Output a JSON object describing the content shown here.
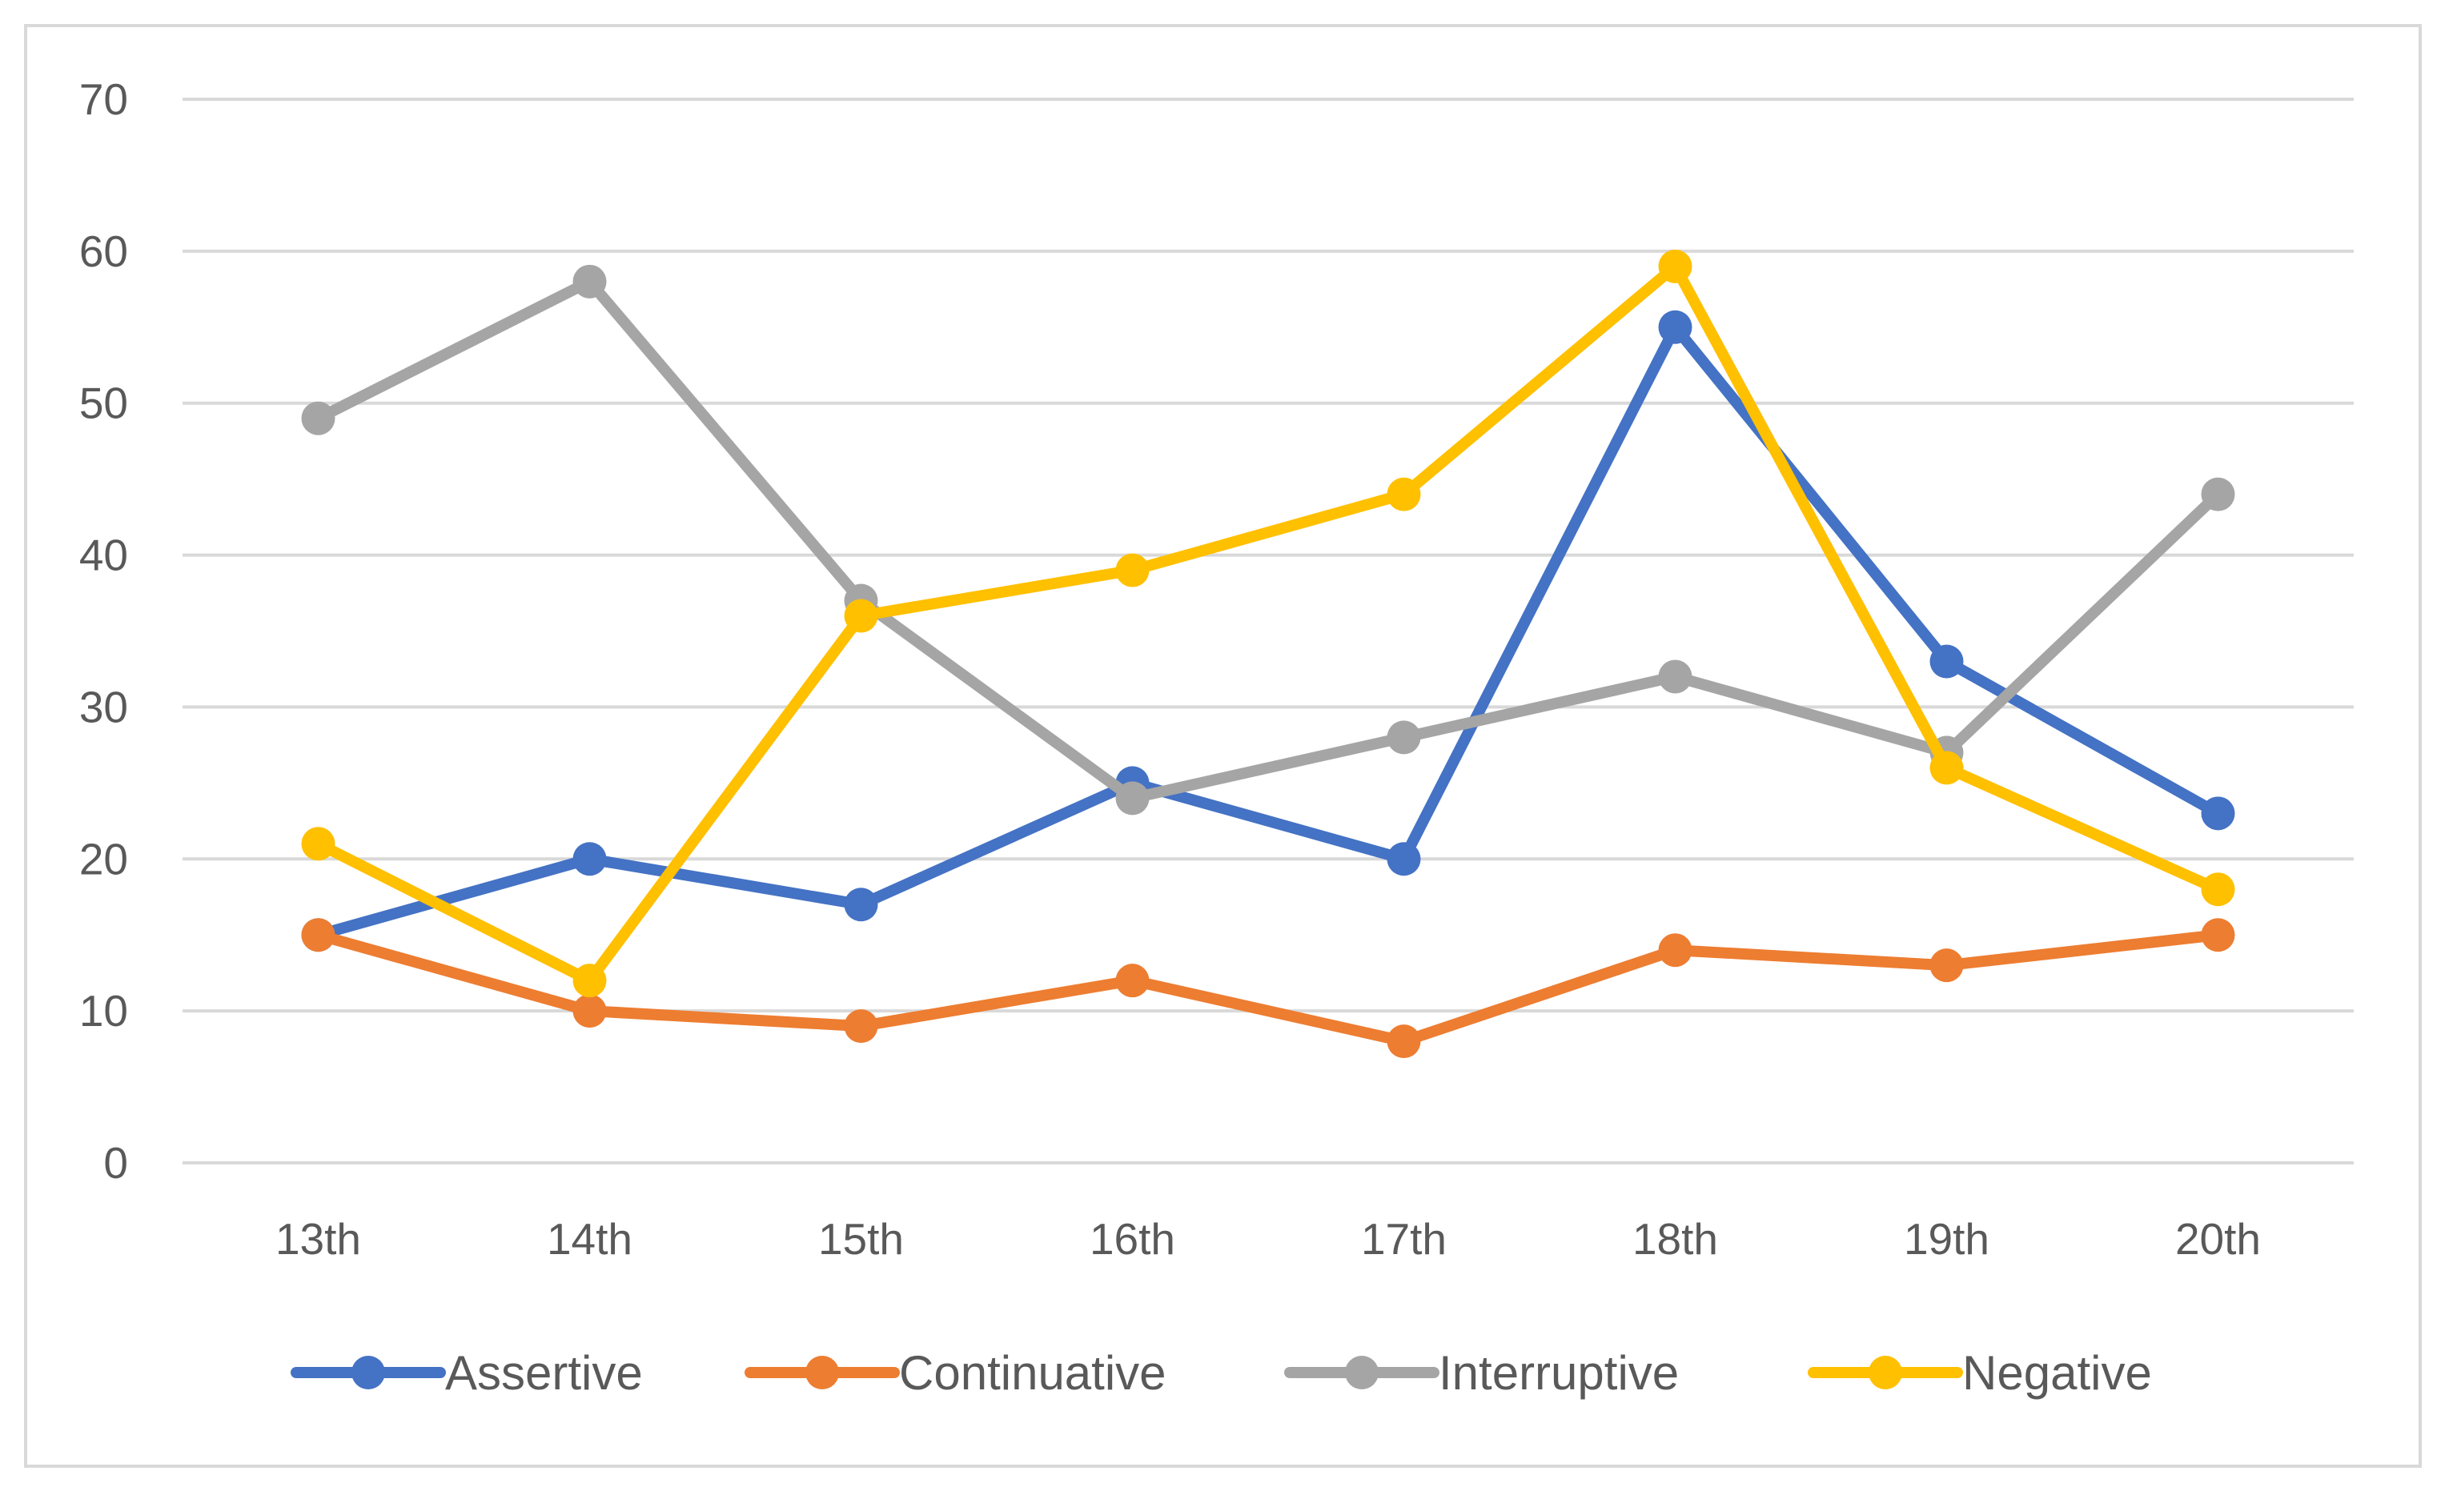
{
  "chart_data": {
    "type": "line",
    "title": "",
    "xlabel": "",
    "ylabel": "",
    "categories": [
      "13th",
      "14th",
      "15th",
      "16th",
      "17th",
      "18th",
      "19th",
      "20th"
    ],
    "ylim": [
      0,
      70
    ],
    "yticks": [
      0,
      10,
      20,
      30,
      40,
      50,
      60,
      70
    ],
    "grid": true,
    "legend_position": "bottom",
    "series": [
      {
        "name": "Assertive",
        "color": "#4472c4",
        "values": [
          15,
          20,
          17,
          25,
          20,
          55,
          33,
          23
        ]
      },
      {
        "name": "Continuative",
        "color": "#ed7d31",
        "values": [
          15,
          10,
          9,
          12,
          8,
          14,
          13,
          15
        ]
      },
      {
        "name": "Interruptive",
        "color": "#a5a5a5",
        "values": [
          49,
          58,
          37,
          24,
          28,
          32,
          27,
          44
        ]
      },
      {
        "name": "Negative",
        "color": "#ffc000",
        "values": [
          21,
          12,
          36,
          39,
          44,
          59,
          26,
          18
        ]
      }
    ]
  }
}
